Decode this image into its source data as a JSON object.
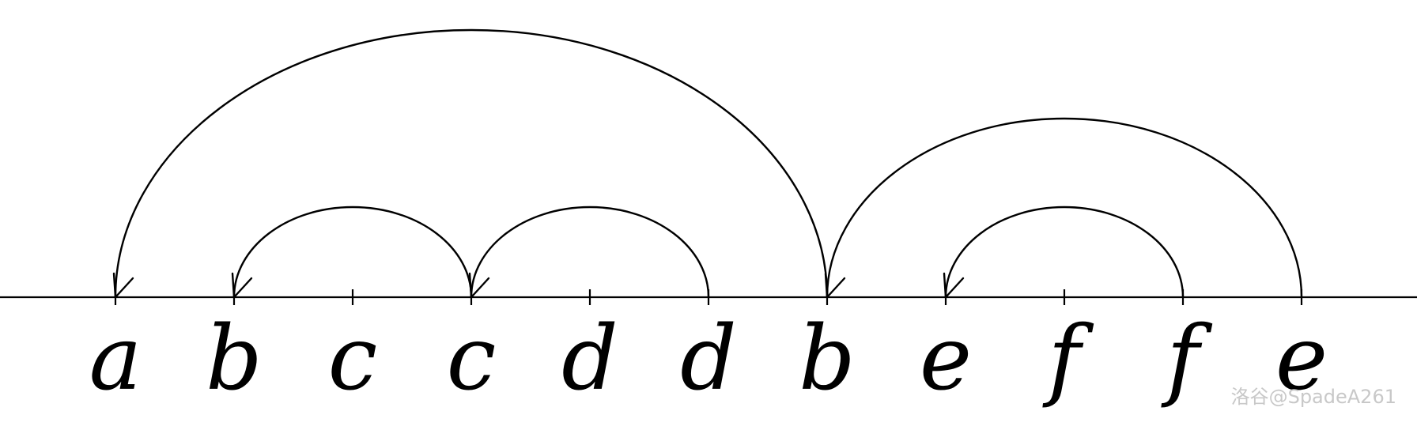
{
  "sequence": [
    "a",
    "b",
    "c",
    "c",
    "d",
    "d",
    "b",
    "e",
    "f",
    "f",
    "e"
  ],
  "arcs": [
    {
      "from": 6,
      "to": 0
    },
    {
      "from": 3,
      "to": 1
    },
    {
      "from": 5,
      "to": 3
    },
    {
      "from": 10,
      "to": 6
    },
    {
      "from": 9,
      "to": 7
    }
  ],
  "watermark": "洛谷@SpadeA261"
}
